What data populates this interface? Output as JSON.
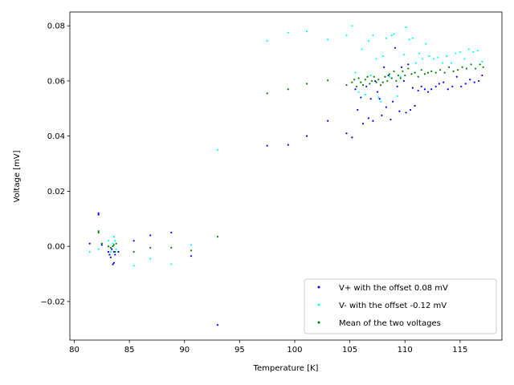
{
  "chart_data": {
    "type": "scatter",
    "title": "",
    "xlabel": "Temperature [K]",
    "ylabel": "Voltage [mV]",
    "xlim": [
      79.6,
      118.8
    ],
    "ylim": [
      -0.034,
      0.085
    ],
    "x_ticks": [
      80,
      85,
      90,
      95,
      100,
      105,
      110,
      115
    ],
    "y_ticks": [
      -0.02,
      0.0,
      0.02,
      0.04,
      0.06,
      0.08
    ],
    "y_tick_labels": [
      "−0.02",
      "0.00",
      "0.02",
      "0.04",
      "0.06",
      "0.08"
    ],
    "grid": false,
    "legend_position": "lower-right",
    "colors": {
      "vplus": "#0000ff",
      "vminus": "#00ffff",
      "mean": "#008000"
    },
    "series": [
      {
        "name": "V+ with the offset 0.08 mV",
        "color": "#0000ff",
        "points": [
          [
            81.4,
            0.001
          ],
          [
            82.2,
            0.012
          ],
          [
            82.2,
            0.0115
          ],
          [
            82.5,
            0.0005
          ],
          [
            83.1,
            -0.002
          ],
          [
            83.2,
            -0.003
          ],
          [
            83.3,
            -0.004
          ],
          [
            83.4,
            -0.001
          ],
          [
            83.5,
            -0.0065
          ],
          [
            83.6,
            -0.006
          ],
          [
            83.6,
            -0.002
          ],
          [
            83.7,
            -0.003
          ],
          [
            84.0,
            -0.002
          ],
          [
            85.4,
            0.002
          ],
          [
            86.9,
            0.004
          ],
          [
            88.8,
            0.005
          ],
          [
            90.6,
            -0.0035
          ],
          [
            93.0,
            -0.0285
          ],
          [
            97.5,
            0.0365
          ],
          [
            99.4,
            0.0368
          ],
          [
            101.1,
            0.04
          ],
          [
            103.0,
            0.0455
          ],
          [
            104.7,
            0.041
          ],
          [
            105.2,
            0.0395
          ],
          [
            105.5,
            0.057
          ],
          [
            105.7,
            0.0495
          ],
          [
            106.0,
            0.054
          ],
          [
            106.2,
            0.0445
          ],
          [
            106.5,
            0.058
          ],
          [
            106.7,
            0.0465
          ],
          [
            106.9,
            0.0535
          ],
          [
            107.1,
            0.0455
          ],
          [
            107.3,
            0.06
          ],
          [
            107.5,
            0.056
          ],
          [
            107.7,
            0.0535
          ],
          [
            107.9,
            0.0475
          ],
          [
            108.1,
            0.065
          ],
          [
            108.3,
            0.0505
          ],
          [
            108.5,
            0.062
          ],
          [
            108.7,
            0.046
          ],
          [
            108.9,
            0.0525
          ],
          [
            109.1,
            0.072
          ],
          [
            109.3,
            0.058
          ],
          [
            109.5,
            0.049
          ],
          [
            109.7,
            0.065
          ],
          [
            109.9,
            0.06
          ],
          [
            110.1,
            0.0485
          ],
          [
            110.3,
            0.066
          ],
          [
            110.5,
            0.0495
          ],
          [
            110.7,
            0.0575
          ],
          [
            110.9,
            0.051
          ],
          [
            111.2,
            0.0565
          ],
          [
            111.5,
            0.058
          ],
          [
            111.8,
            0.057
          ],
          [
            112.1,
            0.056
          ],
          [
            112.4,
            0.057
          ],
          [
            112.8,
            0.058
          ],
          [
            113.1,
            0.059
          ],
          [
            113.5,
            0.0595
          ],
          [
            113.9,
            0.057
          ],
          [
            114.3,
            0.058
          ],
          [
            114.7,
            0.0615
          ],
          [
            115.1,
            0.058
          ],
          [
            115.5,
            0.059
          ],
          [
            115.9,
            0.0605
          ],
          [
            116.3,
            0.0595
          ],
          [
            116.7,
            0.06
          ],
          [
            117.0,
            0.062
          ]
        ]
      },
      {
        "name": "V- with the offset -0.12 mV",
        "color": "#00ffff",
        "points": [
          [
            81.4,
            -0.002
          ],
          [
            82.2,
            -0.001
          ],
          [
            82.5,
            0.001
          ],
          [
            83.1,
            0.002
          ],
          [
            83.3,
            -0.002
          ],
          [
            83.5,
            0.001
          ],
          [
            83.6,
            0.0035
          ],
          [
            83.7,
            0.002
          ],
          [
            83.8,
            -0.001
          ],
          [
            85.4,
            -0.007
          ],
          [
            86.9,
            -0.0045
          ],
          [
            88.8,
            -0.0065
          ],
          [
            90.6,
            0.0005
          ],
          [
            93.0,
            0.035
          ],
          [
            97.5,
            0.0745
          ],
          [
            99.4,
            0.0775
          ],
          [
            101.1,
            0.078
          ],
          [
            103.0,
            0.075
          ],
          [
            104.7,
            0.0765
          ],
          [
            105.2,
            0.08
          ],
          [
            105.5,
            0.063
          ],
          [
            105.8,
            0.056
          ],
          [
            106.1,
            0.0715
          ],
          [
            106.4,
            0.055
          ],
          [
            106.7,
            0.0745
          ],
          [
            106.9,
            0.062
          ],
          [
            107.1,
            0.0765
          ],
          [
            107.4,
            0.068
          ],
          [
            107.6,
            0.054
          ],
          [
            107.8,
            0.0525
          ],
          [
            108.0,
            0.069
          ],
          [
            108.3,
            0.0755
          ],
          [
            108.6,
            0.0615
          ],
          [
            108.8,
            0.0765
          ],
          [
            109.0,
            0.077
          ],
          [
            109.3,
            0.0545
          ],
          [
            109.6,
            0.0615
          ],
          [
            109.9,
            0.0695
          ],
          [
            110.1,
            0.0795
          ],
          [
            110.4,
            0.075
          ],
          [
            110.7,
            0.0755
          ],
          [
            111.0,
            0.0665
          ],
          [
            111.3,
            0.07
          ],
          [
            111.6,
            0.068
          ],
          [
            111.9,
            0.0735
          ],
          [
            112.2,
            0.069
          ],
          [
            112.6,
            0.068
          ],
          [
            113.0,
            0.0685
          ],
          [
            113.4,
            0.0665
          ],
          [
            113.8,
            0.069
          ],
          [
            114.2,
            0.0665
          ],
          [
            114.6,
            0.07
          ],
          [
            115.0,
            0.0705
          ],
          [
            115.4,
            0.068
          ],
          [
            115.8,
            0.0715
          ],
          [
            116.2,
            0.0705
          ],
          [
            116.6,
            0.071
          ],
          [
            117.0,
            0.067
          ]
        ]
      },
      {
        "name": "Mean of the two voltages",
        "color": "#008000",
        "points": [
          [
            82.2,
            0.0055
          ],
          [
            82.2,
            0.005
          ],
          [
            82.5,
            0.001
          ],
          [
            83.1,
            0.0
          ],
          [
            83.3,
            -0.0005
          ],
          [
            83.5,
            0.0
          ],
          [
            83.6,
            0.0005
          ],
          [
            83.7,
            -0.002
          ],
          [
            83.8,
            0.001
          ],
          [
            85.4,
            -0.002
          ],
          [
            86.9,
            -0.0005
          ],
          [
            88.8,
            -0.0005
          ],
          [
            90.6,
            -0.0015
          ],
          [
            93.0,
            0.0035
          ],
          [
            97.5,
            0.0555
          ],
          [
            99.4,
            0.057
          ],
          [
            101.1,
            0.059
          ],
          [
            103.0,
            0.0602
          ],
          [
            104.7,
            0.0585
          ],
          [
            105.2,
            0.0595
          ],
          [
            105.4,
            0.0605
          ],
          [
            105.6,
            0.058
          ],
          [
            105.8,
            0.061
          ],
          [
            106.0,
            0.0595
          ],
          [
            106.2,
            0.0585
          ],
          [
            106.4,
            0.0605
          ],
          [
            106.6,
            0.0615
          ],
          [
            106.8,
            0.059
          ],
          [
            107.0,
            0.06
          ],
          [
            107.2,
            0.0615
          ],
          [
            107.4,
            0.0595
          ],
          [
            107.6,
            0.0605
          ],
          [
            107.8,
            0.0585
          ],
          [
            108.0,
            0.0595
          ],
          [
            108.2,
            0.0615
          ],
          [
            108.4,
            0.06
          ],
          [
            108.6,
            0.0625
          ],
          [
            108.8,
            0.061
          ],
          [
            109.0,
            0.0635
          ],
          [
            109.2,
            0.06
          ],
          [
            109.4,
            0.062
          ],
          [
            109.6,
            0.061
          ],
          [
            109.8,
            0.0635
          ],
          [
            110.0,
            0.062
          ],
          [
            110.3,
            0.0645
          ],
          [
            110.6,
            0.0625
          ],
          [
            110.9,
            0.063
          ],
          [
            111.2,
            0.0615
          ],
          [
            111.5,
            0.064
          ],
          [
            111.8,
            0.0625
          ],
          [
            112.1,
            0.063
          ],
          [
            112.4,
            0.0635
          ],
          [
            112.8,
            0.063
          ],
          [
            113.2,
            0.064
          ],
          [
            113.6,
            0.063
          ],
          [
            114.0,
            0.065
          ],
          [
            114.4,
            0.0635
          ],
          [
            114.8,
            0.064
          ],
          [
            115.2,
            0.065
          ],
          [
            115.6,
            0.0645
          ],
          [
            116.0,
            0.066
          ],
          [
            116.4,
            0.0645
          ],
          [
            116.8,
            0.066
          ],
          [
            117.1,
            0.065
          ]
        ]
      }
    ]
  }
}
